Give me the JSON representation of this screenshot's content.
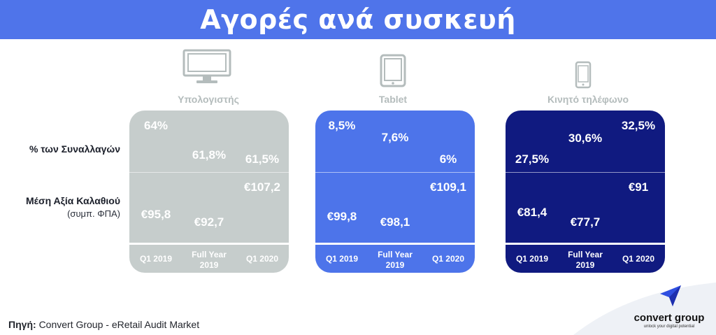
{
  "title": "Αγορές ανά συσκευή",
  "row_labels": {
    "transactions": "% των Συναλλαγών",
    "basket": "Μέση Αξία Καλαθιού",
    "basket_note": "(συμπ. ΦΠΑ)"
  },
  "chart_data": {
    "type": "table",
    "categories": [
      "Q1 2019",
      "Full Year 2019",
      "Q1 2020"
    ],
    "category_labels": [
      [
        "Q1 2019"
      ],
      [
        "Full Year",
        "2019"
      ],
      [
        "Q1 2020"
      ]
    ],
    "devices": [
      {
        "name": "Υπολογιστής",
        "icon": "desktop-monitor-icon",
        "color": "#c6cdcc",
        "transactions": {
          "values": [
            64,
            61.8,
            61.5
          ],
          "labels": [
            "64%",
            "61,8%",
            "61,5%"
          ]
        },
        "basket": {
          "values": [
            95.8,
            92.7,
            107.2
          ],
          "labels": [
            "€95,8",
            "€92,7",
            "€107,2"
          ]
        }
      },
      {
        "name": "Tablet",
        "icon": "tablet-icon",
        "color": "#4d74ea",
        "transactions": {
          "values": [
            8.5,
            7.6,
            6
          ],
          "labels": [
            "8,5%",
            "7,6%",
            "6%"
          ]
        },
        "basket": {
          "values": [
            99.8,
            98.1,
            109.1
          ],
          "labels": [
            "€99,8",
            "€98,1",
            "€109,1"
          ]
        }
      },
      {
        "name": "Κινητό τηλέφωνο",
        "icon": "mobile-phone-icon",
        "color": "#101a80",
        "transactions": {
          "values": [
            27.5,
            30.6,
            32.5
          ],
          "labels": [
            "27,5%",
            "30,6%",
            "32,5%"
          ]
        },
        "basket": {
          "values": [
            81.4,
            77.7,
            91
          ],
          "labels": [
            "€81,4",
            "€77,7",
            "€91"
          ]
        }
      }
    ]
  },
  "source": {
    "prefix": "Πηγή:",
    "text": "Convert Group - eRetail Audit Market"
  },
  "logo": {
    "name": "convert group",
    "tagline": "unlock your digital potential"
  },
  "colors": {
    "header": "#4f74ea",
    "icon_grey": "#b4bcbc",
    "logo_accent": "#2f4fe0"
  }
}
